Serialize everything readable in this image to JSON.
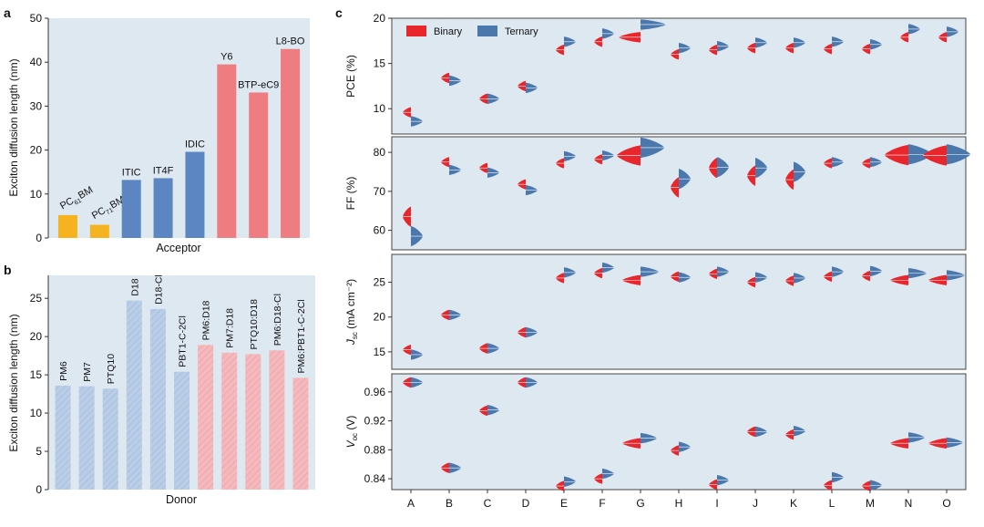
{
  "panels": {
    "a": "a",
    "b": "b",
    "c": "c"
  },
  "colors": {
    "panel_bg": "#dde8f0",
    "binary": "#e8262b",
    "ternary": "#4a78ad",
    "fullerene": "#f5b41f",
    "nonfused": "#5b86c2",
    "fused_red": "#ef7c80",
    "donor_blue": "#b9cde6",
    "donor_pink": "#f4b9bc"
  },
  "chart_data": [
    {
      "panel": "a",
      "type": "bar",
      "ylabel": "Exciton diffusion length (nm)",
      "xlabel": "Acceptor",
      "ylim": [
        0,
        50
      ],
      "yticks": [
        0,
        10,
        20,
        30,
        40,
        50
      ],
      "categories": [
        {
          "main": "PC",
          "sub": "61",
          "rest": "BM"
        },
        {
          "main": "PC",
          "sub": "71",
          "rest": "BM"
        },
        {
          "main": "ITIC",
          "sub": "",
          "rest": ""
        },
        {
          "main": "IT4F",
          "sub": "",
          "rest": ""
        },
        {
          "main": "IDIC",
          "sub": "",
          "rest": ""
        },
        {
          "main": "Y6",
          "sub": "",
          "rest": ""
        },
        {
          "main": "BTP-eC9",
          "sub": "",
          "rest": ""
        },
        {
          "main": "L8-BO",
          "sub": "",
          "rest": ""
        }
      ],
      "values": [
        5.2,
        3.0,
        13.2,
        13.6,
        19.6,
        39.5,
        33.1,
        43.0
      ],
      "bar_colors": [
        "#f5b41f",
        "#f5b41f",
        "#5b86c2",
        "#5b86c2",
        "#5b86c2",
        "#ef7c80",
        "#ef7c80",
        "#ef7c80"
      ],
      "rotated": [
        true,
        true,
        false,
        false,
        false,
        false,
        false,
        false
      ]
    },
    {
      "panel": "b",
      "type": "bar",
      "ylabel": "Exciton diffusion length (nm)",
      "xlabel": "Donor",
      "ylim": [
        0,
        28
      ],
      "yticks": [
        0,
        5,
        10,
        15,
        20,
        25
      ],
      "categories": [
        "PM6",
        "PM7",
        "PTQ10",
        "D18",
        "D18-Cl",
        "PBT1-C-2Cl",
        "PM6:D18",
        "PM7:D18",
        "PTQ10:D18",
        "PM6:D18-Cl",
        "PM6:PBT1-C-2Cl"
      ],
      "values": [
        13.6,
        13.5,
        13.2,
        24.7,
        23.6,
        15.4,
        18.9,
        17.9,
        17.7,
        18.2,
        14.6
      ],
      "bar_colors": [
        "#b9cde6",
        "#b9cde6",
        "#b9cde6",
        "#b9cde6",
        "#b9cde6",
        "#b9cde6",
        "#f4b9bc",
        "#f4b9bc",
        "#f4b9bc",
        "#f4b9bc",
        "#f4b9bc"
      ]
    },
    {
      "panel": "c",
      "type": "scatter",
      "subtype": "split-violin",
      "legend": [
        "Binary",
        "Ternary"
      ],
      "legend_position": "top-left",
      "categories": [
        "A",
        "B",
        "C",
        "D",
        "E",
        "F",
        "G",
        "H",
        "I",
        "J",
        "K",
        "L",
        "M",
        "N",
        "O"
      ],
      "rows": [
        {
          "key": "pce",
          "ylabel": {
            "main": "PCE (%)",
            "sub": "",
            "rest": ""
          },
          "ylim": [
            7.2,
            20
          ],
          "yticks": [
            "10",
            "15",
            "20"
          ],
          "binary": [
            9.6,
            13.4,
            11.1,
            12.5,
            16.5,
            17.4,
            17.9,
            16.0,
            16.5,
            16.7,
            16.7,
            16.6,
            16.6,
            17.9,
            17.9
          ],
          "ternary": [
            8.6,
            13.1,
            11.1,
            12.3,
            17.4,
            18.3,
            19.3,
            16.7,
            16.9,
            17.3,
            17.3,
            17.4,
            17.1,
            18.8,
            18.5
          ]
        },
        {
          "key": "ff",
          "ylabel": {
            "main": "FF (%)",
            "sub": "",
            "rest": ""
          },
          "ylim": [
            55,
            84
          ],
          "yticks": [
            "60",
            "70",
            "80"
          ],
          "binary": [
            63.5,
            77.5,
            76.0,
            71.8,
            77.2,
            78.2,
            79.2,
            71.0,
            76.0,
            74.0,
            73.0,
            77.2,
            77.2,
            79.3,
            79.2
          ],
          "ternary": [
            58.5,
            75.5,
            74.8,
            70.3,
            79.0,
            79.2,
            81.2,
            73.2,
            76.2,
            76.0,
            75.0,
            77.5,
            77.5,
            79.5,
            79.5
          ]
        },
        {
          "key": "jsc",
          "ylabel": {
            "main": "J",
            "sub": "sc",
            "rest": " (mA cm⁻²)"
          },
          "ylim": [
            12.5,
            29
          ],
          "yticks": [
            "15",
            "20",
            "25"
          ],
          "binary": [
            15.3,
            20.3,
            15.5,
            17.8,
            25.6,
            26.3,
            25.3,
            25.8,
            26.2,
            25.0,
            25.2,
            25.8,
            25.9,
            25.3,
            25.3
          ],
          "ternary": [
            14.6,
            20.3,
            15.5,
            17.8,
            26.4,
            27.1,
            26.5,
            25.7,
            26.5,
            25.7,
            25.6,
            26.5,
            26.6,
            26.3,
            26.0
          ]
        },
        {
          "key": "voc",
          "ylabel": {
            "main": "V",
            "sub": "oc",
            "rest": " (V)"
          },
          "ylim": [
            0.825,
            0.985
          ],
          "yticks": [
            "0.84",
            "0.88",
            "0.92",
            "0.96"
          ],
          "binary": [
            0.973,
            0.855,
            0.934,
            0.973,
            0.83,
            0.84,
            0.889,
            0.879,
            0.832,
            0.905,
            0.901,
            0.831,
            0.83,
            0.889,
            0.889
          ],
          "ternary": [
            0.973,
            0.855,
            0.935,
            0.973,
            0.836,
            0.847,
            0.896,
            0.884,
            0.838,
            0.905,
            0.906,
            0.842,
            0.831,
            0.897,
            0.89
          ]
        }
      ]
    }
  ]
}
